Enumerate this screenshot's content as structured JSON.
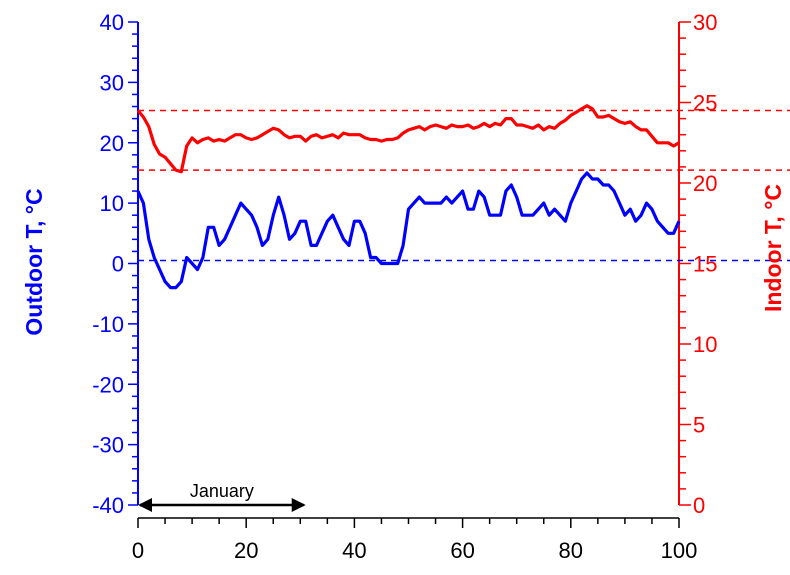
{
  "chart_data": {
    "type": "line",
    "x_ticks": [
      0,
      20,
      40,
      60,
      80,
      100
    ],
    "xlim": [
      0,
      100
    ],
    "y_left": {
      "label": "Outdoor T, °C",
      "color": "#0000ff",
      "lim": [
        -40,
        40
      ],
      "ticks": [
        -40,
        -30,
        -20,
        -10,
        0,
        10,
        20,
        30,
        40
      ]
    },
    "y_right": {
      "label": "Indoor T, °C",
      "color": "#ff0000",
      "lim": [
        0,
        30
      ],
      "ticks": [
        0,
        5,
        10,
        15,
        20,
        25,
        30
      ]
    },
    "series": [
      {
        "axis": "left",
        "color": "#0000ff",
        "x": [
          0,
          1,
          2,
          3,
          4,
          5,
          6,
          7,
          8,
          9,
          10,
          11,
          12,
          13,
          14,
          15,
          16,
          17,
          18,
          19,
          20,
          21,
          22,
          23,
          24,
          25,
          26,
          27,
          28,
          29,
          30,
          31,
          32,
          33,
          34,
          35,
          36,
          37,
          38,
          39,
          40,
          41,
          42,
          43,
          44,
          45,
          46,
          47,
          48,
          49,
          50,
          51,
          52,
          53,
          54,
          55,
          56,
          57,
          58,
          59,
          60,
          61,
          62,
          63,
          64,
          65,
          66,
          67,
          68,
          69,
          70,
          71,
          72,
          73,
          74,
          75,
          76,
          77,
          78,
          79,
          80,
          81,
          82,
          83,
          84,
          85,
          86,
          87,
          88,
          89,
          90,
          91,
          92,
          93,
          94,
          95,
          96,
          97,
          98,
          99,
          100
        ],
        "y": [
          12,
          10,
          4,
          1,
          -1,
          -3,
          -4,
          -4,
          -3,
          1,
          0,
          -1,
          1,
          6,
          6,
          3,
          4,
          6,
          8,
          10,
          9,
          8,
          6,
          3,
          4,
          8,
          11,
          8,
          4,
          5,
          7,
          7,
          3,
          3,
          5,
          7,
          8,
          6,
          4,
          3,
          7,
          7,
          5,
          1,
          1,
          0,
          0,
          0,
          0,
          3,
          9,
          10,
          11,
          10,
          10,
          10,
          10,
          11,
          10,
          11,
          12,
          9,
          9,
          12,
          11,
          8,
          8,
          8,
          12,
          13,
          11,
          8,
          8,
          8,
          9,
          10,
          8,
          9,
          8,
          7,
          10,
          12,
          14,
          15,
          14,
          14,
          13,
          13,
          12,
          10,
          8,
          9,
          7,
          8,
          10,
          9,
          7,
          6,
          5,
          5,
          7
        ]
      },
      {
        "axis": "right",
        "color": "#ff0000",
        "x": [
          0,
          1,
          2,
          3,
          4,
          5,
          6,
          7,
          8,
          9,
          10,
          11,
          12,
          13,
          14,
          15,
          16,
          17,
          18,
          19,
          20,
          21,
          22,
          23,
          24,
          25,
          26,
          27,
          28,
          29,
          30,
          31,
          32,
          33,
          34,
          35,
          36,
          37,
          38,
          39,
          40,
          41,
          42,
          43,
          44,
          45,
          46,
          47,
          48,
          49,
          50,
          51,
          52,
          53,
          54,
          55,
          56,
          57,
          58,
          59,
          60,
          61,
          62,
          63,
          64,
          65,
          66,
          67,
          68,
          69,
          70,
          71,
          72,
          73,
          74,
          75,
          76,
          77,
          78,
          79,
          80,
          81,
          82,
          83,
          84,
          85,
          86,
          87,
          88,
          89,
          90,
          91,
          92,
          93,
          94,
          95,
          96,
          97,
          98,
          99,
          100
        ],
        "y": [
          24.5,
          24.1,
          23.5,
          22.4,
          21.8,
          21.6,
          21.2,
          20.8,
          20.7,
          22.3,
          22.8,
          22.5,
          22.7,
          22.8,
          22.6,
          22.7,
          22.6,
          22.8,
          23.0,
          23.0,
          22.8,
          22.7,
          22.8,
          23.0,
          23.2,
          23.4,
          23.3,
          23.0,
          22.8,
          22.9,
          22.9,
          22.6,
          22.9,
          23.0,
          22.8,
          22.9,
          23.0,
          22.8,
          23.1,
          23.0,
          23.0,
          23.0,
          22.8,
          22.7,
          22.7,
          22.6,
          22.7,
          22.7,
          22.8,
          23.1,
          23.3,
          23.4,
          23.5,
          23.3,
          23.5,
          23.6,
          23.5,
          23.4,
          23.6,
          23.5,
          23.5,
          23.6,
          23.4,
          23.5,
          23.7,
          23.5,
          23.7,
          23.6,
          24.0,
          24.0,
          23.6,
          23.6,
          23.5,
          23.4,
          23.6,
          23.3,
          23.5,
          23.4,
          23.7,
          23.9,
          24.2,
          24.4,
          24.6,
          24.8,
          24.6,
          24.1,
          24.1,
          24.2,
          24.0,
          23.8,
          23.7,
          23.8,
          23.5,
          23.3,
          23.3,
          22.9,
          22.5,
          22.5,
          22.5,
          22.3,
          22.5
        ]
      }
    ],
    "reference_lines": [
      {
        "axis": "right",
        "y": 24.5,
        "color": "#ff0000",
        "style": "dashed"
      },
      {
        "axis": "right",
        "y": 20.8,
        "color": "#ff0000",
        "style": "dashed"
      },
      {
        "axis": "left",
        "y": 0.5,
        "color": "#0000ff",
        "style": "dashed"
      }
    ],
    "annotation": {
      "text": "January",
      "x_start": 0,
      "x_end": 31,
      "y_left": -40
    }
  }
}
